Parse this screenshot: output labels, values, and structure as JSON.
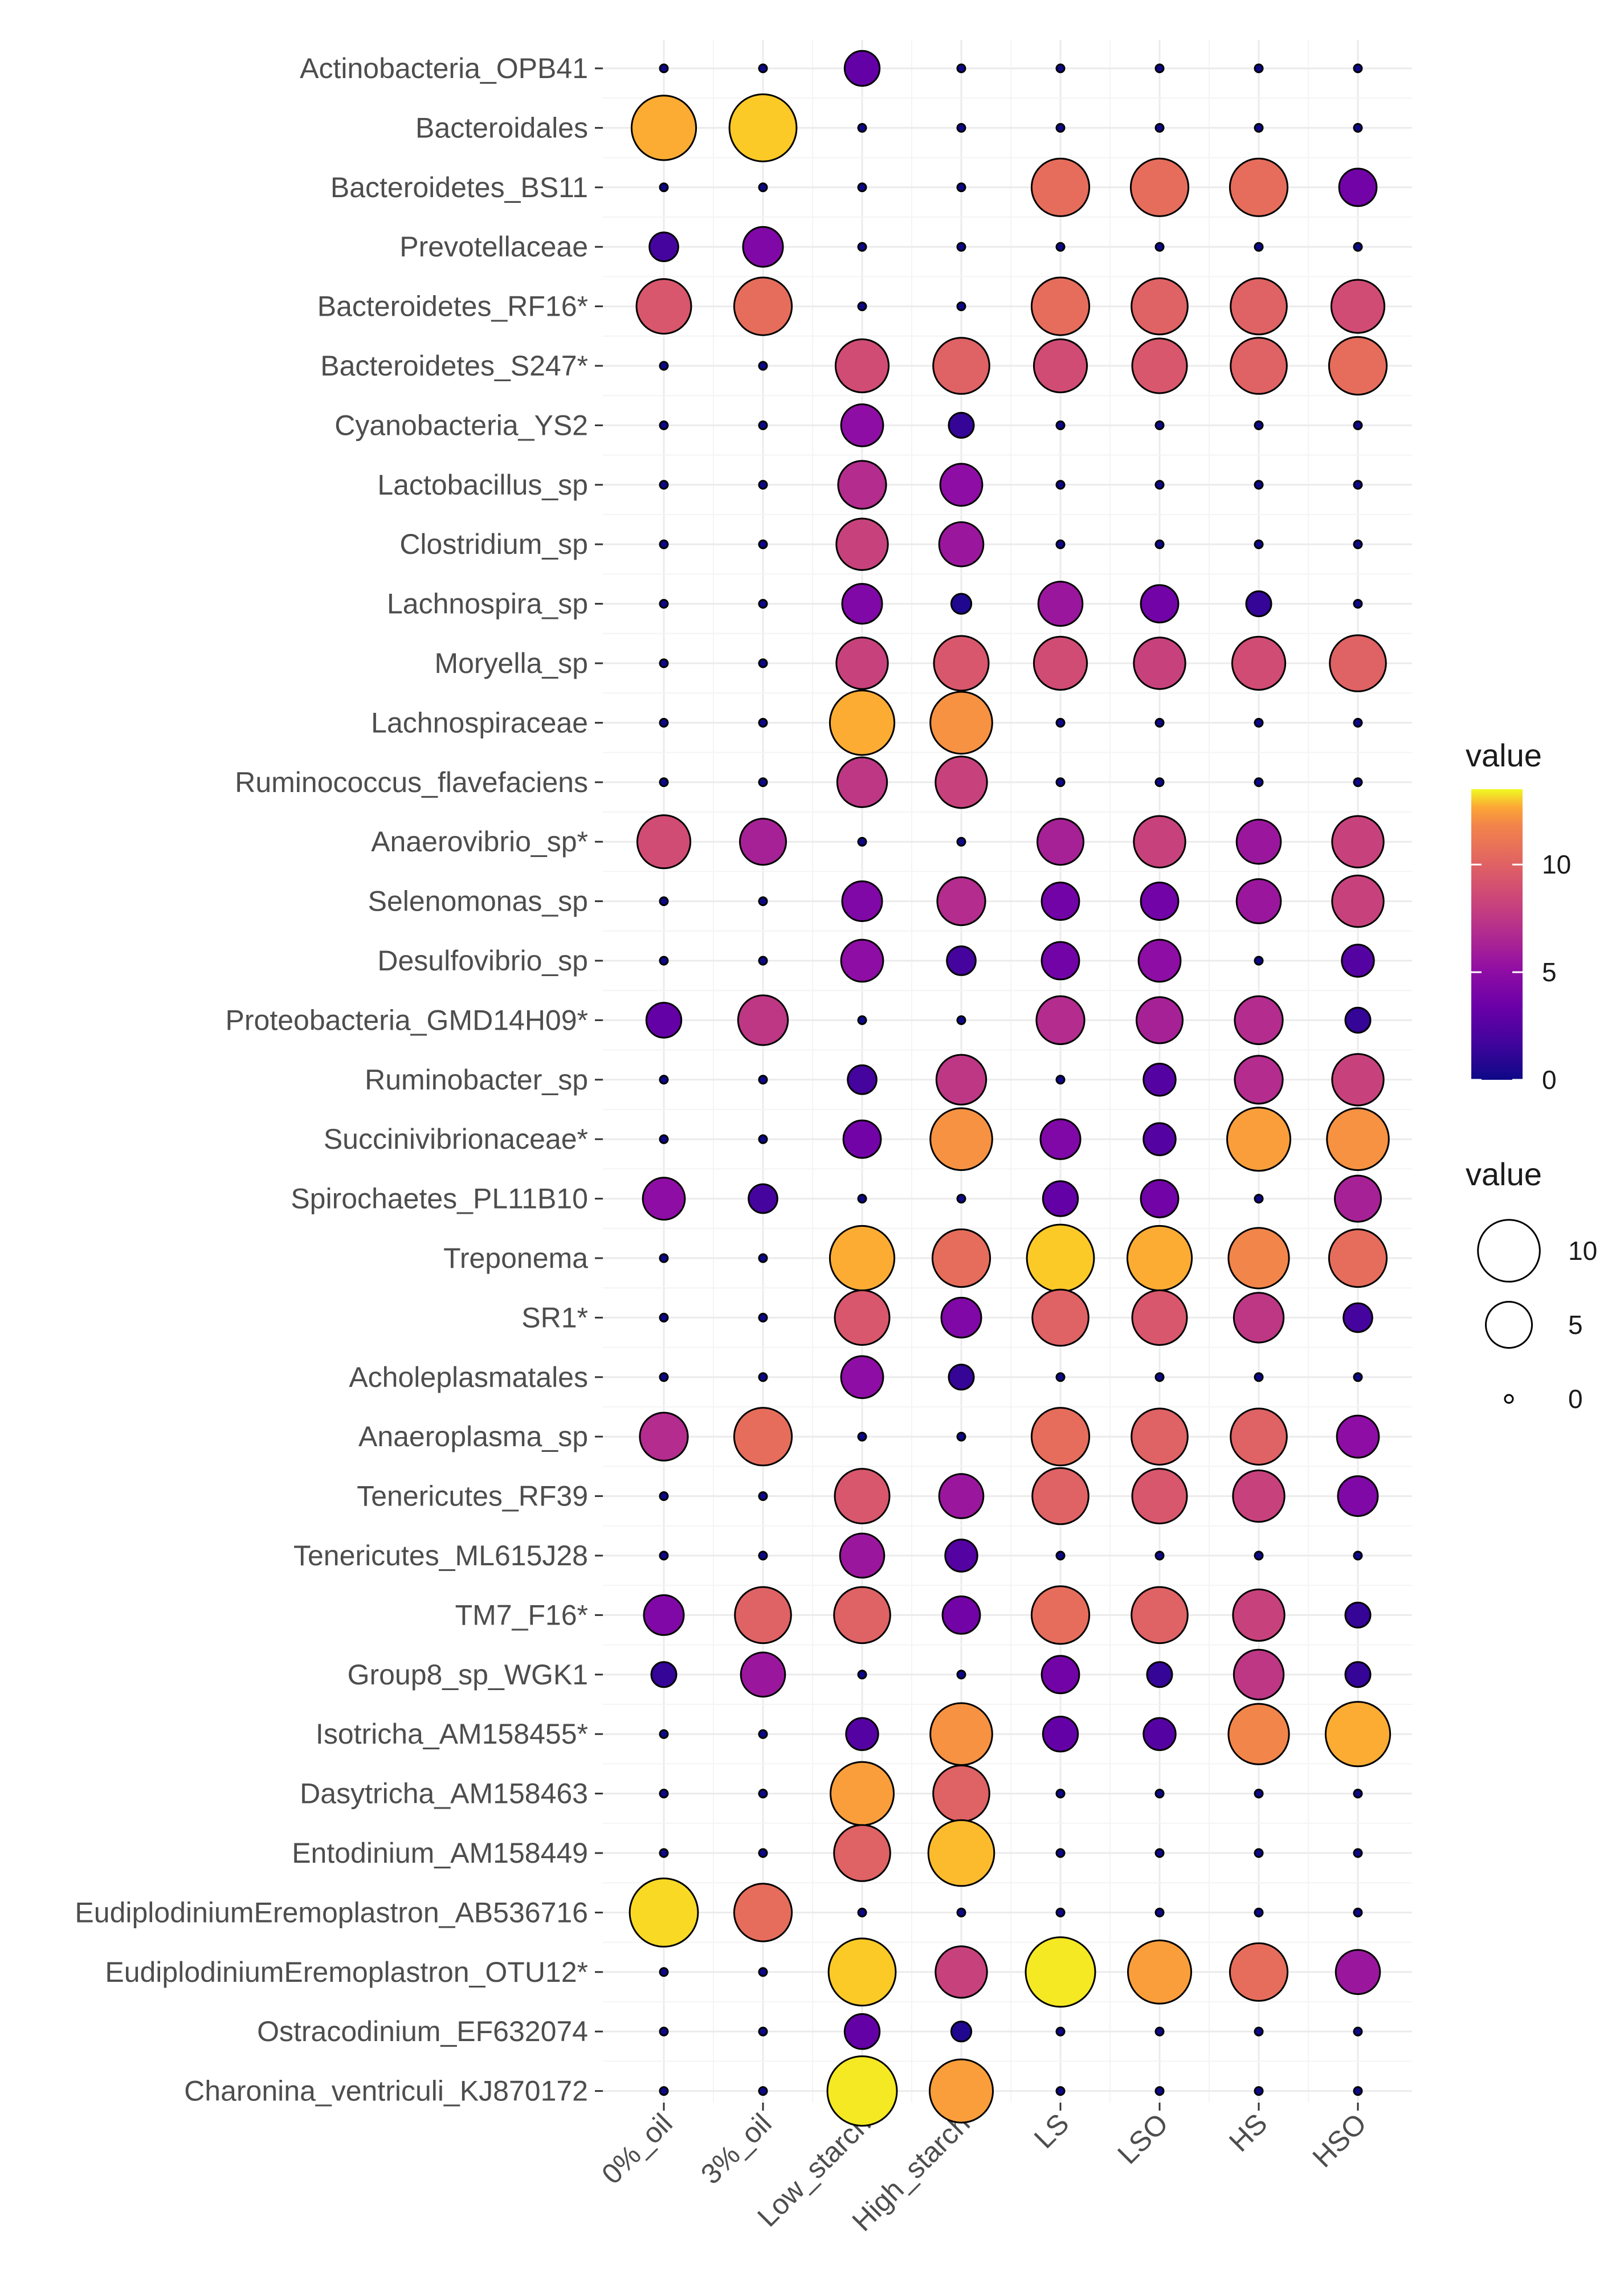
{
  "chart_data": {
    "type": "scatter",
    "subtype": "bubble-matrix",
    "title": "",
    "xlabel": "",
    "ylabel": "",
    "categories_x": [
      "0%_oil",
      "3%_oil",
      "Low_starch",
      "High_starch",
      "LS",
      "LSO",
      "HS",
      "HSO"
    ],
    "categories_y": [
      "Actinobacteria_OPB41",
      "Bacteroidales",
      "Bacteroidetes_BS11",
      "Prevotellaceae",
      "Bacteroidetes_RF16*",
      "Bacteroidetes_S247*",
      "Cyanobacteria_YS2",
      "Lactobacillus_sp",
      "Clostridium_sp",
      "Lachnospira_sp",
      "Moryella_sp",
      "Lachnospiraceae",
      "Ruminococcus_flavefaciens",
      "Anaerovibrio_sp*",
      "Selenomonas_sp",
      "Desulfovibrio_sp",
      "Proteobacteria_GMD14H09*",
      "Ruminobacter_sp",
      "Succinivibrionaceae*",
      "Spirochaetes_PL11B10",
      "Treponema",
      "SR1*",
      "Acholeplasmatales",
      "Anaeroplasma_sp",
      "Tenericutes_RF39",
      "Tenericutes_ML615J28",
      "TM7_F16*",
      "Group8_sp_WGK1",
      "Isotricha_AM158455*",
      "Dasytricha_AM158463",
      "Entodinium_AM158449",
      "EudiplodiniumEremoplastron_AB536716",
      "EudiplodiniumEremoplastron_OTU12*",
      "Ostracodinium_EF632074",
      "Charonina_ventriculi_KJ870172"
    ],
    "values": [
      [
        0,
        0,
        2.5,
        0,
        0,
        0,
        0,
        0
      ],
      [
        11,
        12,
        0,
        0,
        0,
        0,
        0,
        0
      ],
      [
        0,
        0,
        0,
        0,
        8.5,
        8.5,
        8.5,
        3
      ],
      [
        1.5,
        3.5,
        0,
        0,
        0,
        0,
        0,
        0
      ],
      [
        7.5,
        8.5,
        0,
        0,
        8.5,
        8,
        8,
        7
      ],
      [
        0,
        0,
        7,
        8,
        7,
        7.5,
        8,
        8.5
      ],
      [
        0,
        0,
        4,
        1,
        0,
        0,
        0,
        0
      ],
      [
        0,
        0,
        5.5,
        4,
        0,
        0,
        0,
        0
      ],
      [
        0,
        0,
        6.5,
        4.5,
        0,
        0,
        0,
        0
      ],
      [
        0,
        0,
        3.5,
        0.5,
        4.5,
        3,
        1,
        0
      ],
      [
        0,
        0,
        6.5,
        7.5,
        7,
        6.5,
        7,
        8
      ],
      [
        0,
        0,
        11,
        10,
        0,
        0,
        0,
        0
      ],
      [
        0,
        0,
        6,
        6.5,
        0,
        0,
        0,
        0
      ],
      [
        7,
        5,
        0,
        0,
        5,
        6.5,
        4.5,
        6.5
      ],
      [
        0,
        0,
        3.5,
        5.5,
        3,
        3,
        4.5,
        6.5
      ],
      [
        0,
        0,
        4,
        1.5,
        3,
        4,
        0,
        2
      ],
      [
        2.5,
        6,
        0,
        0,
        5.5,
        5,
        5.5,
        1
      ],
      [
        0,
        0,
        1.5,
        6,
        0,
        2,
        5.5,
        6.5
      ],
      [
        0,
        0,
        3,
        10,
        3.5,
        2,
        10.5,
        10
      ],
      [
        4,
        1.5,
        0,
        0,
        2.5,
        3,
        0,
        5
      ],
      [
        0,
        0,
        11,
        8.5,
        12,
        11,
        9.5,
        8.5
      ],
      [
        0,
        0,
        7.5,
        3.5,
        8,
        7.5,
        6,
        1.5
      ],
      [
        0,
        0,
        4,
        1,
        0,
        0,
        0,
        0
      ],
      [
        5.5,
        8.5,
        0,
        0,
        8.5,
        8,
        8,
        4
      ],
      [
        0,
        0,
        7.5,
        4.5,
        8,
        7.5,
        6.5,
        3.5
      ],
      [
        0,
        0,
        4.5,
        2,
        0,
        0,
        0,
        0
      ],
      [
        3.5,
        8,
        8,
        3,
        8.5,
        8,
        6.5,
        1
      ],
      [
        1,
        4.5,
        0,
        0,
        3,
        1,
        6,
        1
      ],
      [
        0,
        0,
        2,
        10,
        2.5,
        2,
        9.5,
        11
      ],
      [
        0,
        0,
        10.5,
        8,
        0,
        0,
        0,
        0
      ],
      [
        0,
        0,
        8,
        11.5,
        0,
        0,
        0,
        0
      ],
      [
        12.5,
        8.5,
        0,
        0,
        0,
        0,
        0,
        0
      ],
      [
        0,
        0,
        12,
        6.5,
        13,
        10.5,
        8.5,
        4.5
      ],
      [
        0,
        0,
        2.5,
        0.5,
        0,
        0,
        0,
        0
      ],
      [
        0,
        0,
        13,
        10.5,
        0,
        0,
        0,
        0
      ]
    ],
    "value_range": [
      0,
      13.5
    ],
    "color_scale": "plasma",
    "grid": true,
    "legend_position": "right",
    "legend": {
      "color": {
        "title": "value",
        "ticks": [
          0,
          5,
          10
        ]
      },
      "size": {
        "title": "value",
        "ticks": [
          10,
          5,
          0
        ]
      }
    }
  }
}
